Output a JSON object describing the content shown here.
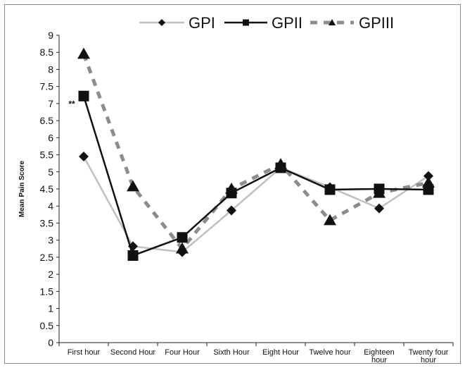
{
  "chart_data": {
    "type": "line",
    "ylabel": "Mean Pain Score",
    "xlabel": "",
    "ylim": [
      0,
      9
    ],
    "yticks": [
      "0",
      "0.5",
      "1",
      "1.5",
      "2",
      "2.5",
      "3",
      "3.5",
      "4",
      "4.5",
      "5",
      "5.5",
      "6",
      "6.5",
      "7",
      "7.5",
      "8",
      "8.5",
      "9"
    ],
    "categories": [
      [
        "First hour"
      ],
      [
        "Second Hour"
      ],
      [
        "Four Hour"
      ],
      [
        "Sixth Hour"
      ],
      [
        "Eight Hour"
      ],
      [
        "Twelve hour"
      ],
      [
        "Eighteen",
        "hour"
      ],
      [
        "Twenty four",
        "hour"
      ]
    ],
    "legend_position": "top",
    "series": [
      {
        "name": "GPI",
        "values": [
          5.45,
          2.82,
          2.65,
          3.87,
          5.12,
          4.55,
          3.93,
          4.88
        ],
        "color": "#c0c0c0",
        "marker": "diamond",
        "line": "solid"
      },
      {
        "name": "GPII",
        "values": [
          7.22,
          2.55,
          3.08,
          4.38,
          5.12,
          4.48,
          4.5,
          4.48
        ],
        "color": "#111111",
        "marker": "square",
        "line": "solid"
      },
      {
        "name": "GPIII",
        "values": [
          8.45,
          4.57,
          2.75,
          4.5,
          5.22,
          3.58,
          4.38,
          4.68
        ],
        "color": "#8c8c8c",
        "marker": "triangle",
        "line": "dashed"
      }
    ],
    "annotations": [
      {
        "text": "**",
        "category_index": 0
      }
    ]
  }
}
